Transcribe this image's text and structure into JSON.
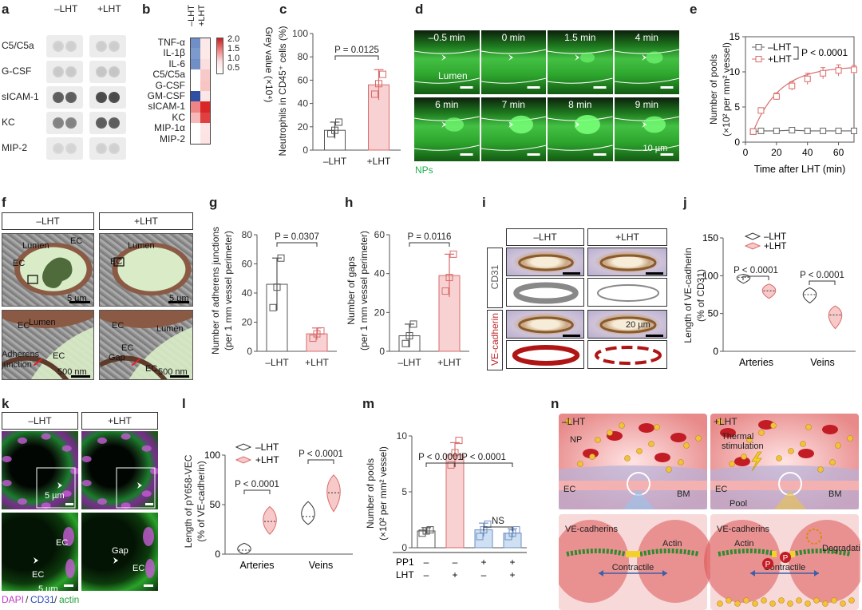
{
  "panels": {
    "a": {
      "label": "a",
      "headers": [
        "–LHT",
        "+LHT"
      ],
      "rows": [
        "C5/C5a",
        "G-CSF",
        "sICAM-1",
        "KC",
        "MIP-2"
      ],
      "intensity_minus": [
        0.15,
        0.18,
        0.75,
        0.55,
        0.12
      ],
      "intensity_plus": [
        0.16,
        0.2,
        0.85,
        0.75,
        0.14
      ]
    },
    "b": {
      "label": "b",
      "cols": [
        "–LHT",
        "+LHT"
      ],
      "rows": [
        "TNF-α",
        "IL-1β",
        "IL-6",
        "C5/C5a",
        "G-CSF",
        "GM-CSF",
        "sICAM-1",
        "KC",
        "MIP-1α",
        "MIP-2"
      ],
      "colorbar_title": "Grey value (×10⁴)",
      "colorbar_ticks": [
        "2.0",
        "1.5",
        "1.0",
        "0.5"
      ],
      "cell_colors": [
        [
          "#6f8fc6",
          "#fbe8e8"
        ],
        [
          "#7c9acb",
          "#fde8e8"
        ],
        [
          "#6f8fc6",
          "#fbdede"
        ],
        [
          "#ffffff",
          "#f8c9c9"
        ],
        [
          "#ffffff",
          "#f8c4c4"
        ],
        [
          "#2e4fa3",
          "#fde6e6"
        ],
        [
          "#f08585",
          "#d92727"
        ],
        [
          "#f6b8b8",
          "#e04040"
        ],
        [
          "#ffffff",
          "#fde5e5"
        ],
        [
          "#ffffff",
          "#fde3e3"
        ]
      ]
    },
    "c": {
      "label": "c",
      "ylabel": "Neutrophils in CD45⁺ cells (%)",
      "pvalue": "P = 0.0125"
    },
    "d": {
      "label": "d",
      "times": [
        "–0.5 min",
        "0 min",
        "1.5 min",
        "4 min",
        "6 min",
        "7 min",
        "8 min",
        "9 min"
      ],
      "lumen_label": "Lumen",
      "scale_label": "10 µm",
      "np_label": "NPs"
    },
    "e": {
      "label": "e",
      "ylabel1": "Number of pools",
      "ylabel2": "(×10² per mm² vessel)",
      "xlabel": "Time after LHT (min)",
      "legend": [
        "–LHT",
        "+LHT"
      ],
      "pvalue": "P < 0.0001"
    },
    "f": {
      "label": "f",
      "headers": [
        "–LHT",
        "+LHT"
      ],
      "lumen": "Lumen",
      "ec": "EC",
      "scale1": "5 µm",
      "scale2": "500 nm",
      "adherens": "Adherens junction",
      "gap": "Gap"
    },
    "g": {
      "label": "g",
      "ylabel1": "Number of adherens junctions",
      "ylabel2": "(per 1 mm vessel perimeter)",
      "pvalue": "P = 0.0307"
    },
    "h": {
      "label": "h",
      "ylabel1": "Number of gaps",
      "ylabel2": "(per 1 mm vessel perimeter)",
      "pvalue": "P = 0.0116"
    },
    "i": {
      "label": "i",
      "headers": [
        "–LHT",
        "+LHT"
      ],
      "row1": "CD31",
      "row2": "VE-cadherin",
      "scale": "20 µm"
    },
    "j": {
      "label": "j",
      "ylabel1": "Length of VE-cadherin",
      "ylabel2": "(% of CD31)",
      "legend": [
        "–LHT",
        "+LHT"
      ],
      "pvalues": [
        "P < 0.0001",
        "P < 0.0001"
      ],
      "groups": [
        "Arteries",
        "Veins"
      ]
    },
    "k": {
      "label": "k",
      "headers": [
        "–LHT",
        "+LHT"
      ],
      "scale": "5 µm",
      "ec": "EC",
      "gap": "Gap",
      "stain_dapi": "DAPI",
      "stain_cd31": "CD31",
      "stain_actin": "actin"
    },
    "l": {
      "label": "l",
      "ylabel1": "Length of pY658-VEC",
      "ylabel2": "(% of VE-cadherin)",
      "legend": [
        "–LHT",
        "+LHT"
      ],
      "pvalues": [
        "P < 0.0001",
        "P < 0.0001"
      ],
      "groups": [
        "Arteries",
        "Veins"
      ]
    },
    "m": {
      "label": "m",
      "ylabel1": "Number of pools",
      "ylabel2": "(×10² per mm² vessel)",
      "pvalues": [
        "P < 0.0001",
        "P < 0.0001"
      ],
      "ns": "NS",
      "pp1_label": "PP1",
      "lht_label": "LHT",
      "pp1_signs": [
        "–",
        "–",
        "+",
        "+"
      ],
      "lht_signs": [
        "–",
        "+",
        "–",
        "+"
      ]
    },
    "n": {
      "label": "n",
      "minus": "–LHT",
      "plus": "+LHT",
      "np": "NP",
      "thermal": "Thermal stimulation",
      "ec": "EC",
      "bm": "BM",
      "pool": "Pool",
      "vecadherins": "VE-cadherins",
      "actin": "Actin",
      "contractile": "Contractile",
      "degradation": "Degradation",
      "p": "P"
    }
  },
  "chart_data": [
    {
      "panel": "c",
      "type": "bar",
      "categories": [
        "–LHT",
        "+LHT"
      ],
      "values": [
        17,
        56
      ],
      "errors": [
        7,
        13
      ],
      "points": [
        [
          14,
          17,
          24
        ],
        [
          48,
          57,
          65
        ]
      ],
      "ylabel": "Neutrophils in CD45⁺ cells (%)",
      "ylim": [
        0,
        100
      ],
      "yticks": [
        0,
        20,
        40,
        60,
        80,
        100
      ],
      "annotation": "P = 0.0125"
    },
    {
      "panel": "e",
      "type": "line",
      "xlabel": "Time after LHT (min)",
      "ylabel": "Number of pools (×10² per mm² vessel)",
      "xlim": [
        0,
        70
      ],
      "ylim": [
        0,
        15
      ],
      "xticks": [
        0,
        20,
        40,
        60
      ],
      "yticks": [
        0,
        5,
        10,
        15
      ],
      "series": [
        {
          "name": "–LHT",
          "x": [
            5,
            10,
            20,
            30,
            40,
            50,
            60,
            70
          ],
          "y": [
            1.5,
            1.6,
            1.6,
            1.7,
            1.6,
            1.6,
            1.6,
            1.6
          ],
          "err": [
            0.3,
            0.3,
            0.3,
            0.3,
            0.3,
            0.3,
            0.3,
            0.3
          ]
        },
        {
          "name": "+LHT",
          "x": [
            5,
            10,
            20,
            30,
            40,
            50,
            60,
            70
          ],
          "y": [
            1.5,
            4.5,
            6.5,
            8.0,
            9.0,
            9.8,
            10.2,
            10.3
          ],
          "err": [
            0.3,
            0.4,
            0.5,
            0.6,
            0.8,
            0.8,
            0.8,
            0.6
          ]
        }
      ],
      "annotation": "P < 0.0001"
    },
    {
      "panel": "g",
      "type": "bar",
      "categories": [
        "–LHT",
        "+LHT"
      ],
      "values": [
        46,
        12
      ],
      "errors": [
        18,
        4
      ],
      "points": [
        [
          30,
          44,
          64
        ],
        [
          9,
          12,
          14
        ]
      ],
      "ylim": [
        0,
        80
      ],
      "yticks": [
        0,
        20,
        40,
        60,
        80
      ],
      "annotation": "P = 0.0307"
    },
    {
      "panel": "h",
      "type": "bar",
      "categories": [
        "–LHT",
        "+LHT"
      ],
      "values": [
        8,
        39
      ],
      "errors": [
        6,
        11
      ],
      "points": [
        [
          4,
          8,
          14
        ],
        [
          31,
          38,
          50
        ]
      ],
      "ylim": [
        0,
        60
      ],
      "yticks": [
        0,
        20,
        40,
        60
      ],
      "annotation": "P = 0.0116"
    },
    {
      "panel": "j",
      "type": "violin",
      "groups": [
        "Arteries",
        "Veins"
      ],
      "series": [
        {
          "name": "–LHT",
          "medians": [
            98,
            75
          ],
          "ranges": [
            [
              90,
              102
            ],
            [
              64,
              84
            ]
          ]
        },
        {
          "name": "+LHT",
          "medians": [
            80,
            48
          ],
          "ranges": [
            [
              70,
              89
            ],
            [
              30,
              60
            ]
          ]
        }
      ],
      "ylim": [
        0,
        150
      ],
      "yticks": [
        0,
        50,
        100,
        150
      ],
      "annotations": [
        "P < 0.0001",
        "P < 0.0001"
      ]
    },
    {
      "panel": "l",
      "type": "violin",
      "groups": [
        "Arteries",
        "Veins"
      ],
      "series": [
        {
          "name": "–LHT",
          "medians": [
            4,
            38
          ],
          "ranges": [
            [
              0,
              11
            ],
            [
              30,
              53
            ]
          ]
        },
        {
          "name": "+LHT",
          "medians": [
            33,
            62
          ],
          "ranges": [
            [
              20,
              48
            ],
            [
              43,
              80
            ]
          ]
        }
      ],
      "ylim": [
        0,
        100
      ],
      "yticks": [
        0,
        50,
        100
      ],
      "annotations": [
        "P < 0.0001",
        "P < 0.0001"
      ]
    },
    {
      "panel": "m",
      "type": "bar",
      "categories": [
        "–/–",
        "–/+",
        "+/–",
        "+/+"
      ],
      "values": [
        1.5,
        8.3,
        1.6,
        1.3
      ],
      "errors": [
        0.3,
        1.1,
        0.6,
        0.4
      ],
      "points": [
        [
          1.3,
          1.5,
          1.6
        ],
        [
          7.4,
          8.5,
          9.6
        ],
        [
          1.0,
          1.6,
          2.1
        ],
        [
          1.0,
          1.3,
          1.6
        ]
      ],
      "ylim": [
        0,
        10
      ],
      "yticks": [
        0,
        5,
        10
      ],
      "annotations": [
        "P < 0.0001",
        "P < 0.0001",
        "NS"
      ]
    }
  ]
}
